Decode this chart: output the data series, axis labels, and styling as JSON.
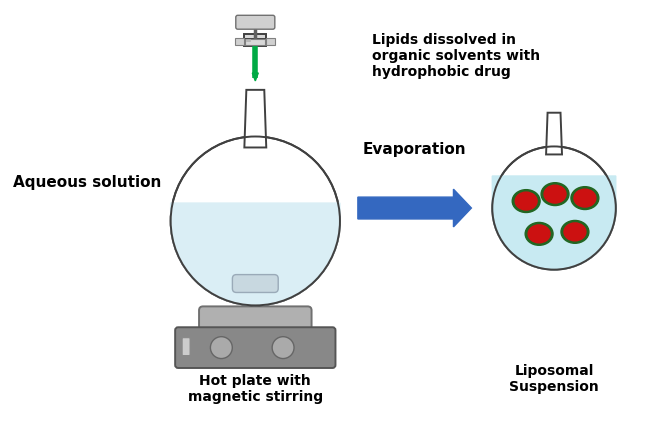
{
  "bg_color": "#ffffff",
  "label_aqueous": "Aqueous solution",
  "label_hotplate": "Hot plate with\nmagnetic stirring",
  "label_evaporation": "Evaporation",
  "label_liposomal": "Liposomal\nSuspension",
  "label_lipids": "Lipids dissolved in\norganic solvents with\nhydrophobic drug",
  "flask_color": "#ffffff",
  "flask_edge": "#404040",
  "water_color": "#daeef5",
  "water2_color": "#c8eaf2",
  "arrow_color": "#3468c0",
  "stir_bar_color": "#c8d8e0",
  "syringe_body_color": "#f0f0f0",
  "syringe_liquid_color": "#f5a0b0",
  "needle_color": "#00aa44",
  "liposome_outer_color": "#226622",
  "liposome_inner_color": "#cc1111",
  "hotplate_top_color": "#c8c8c8",
  "hotplate_body_color": "#888888",
  "hotplate_ring_color": "#b0b0b0"
}
